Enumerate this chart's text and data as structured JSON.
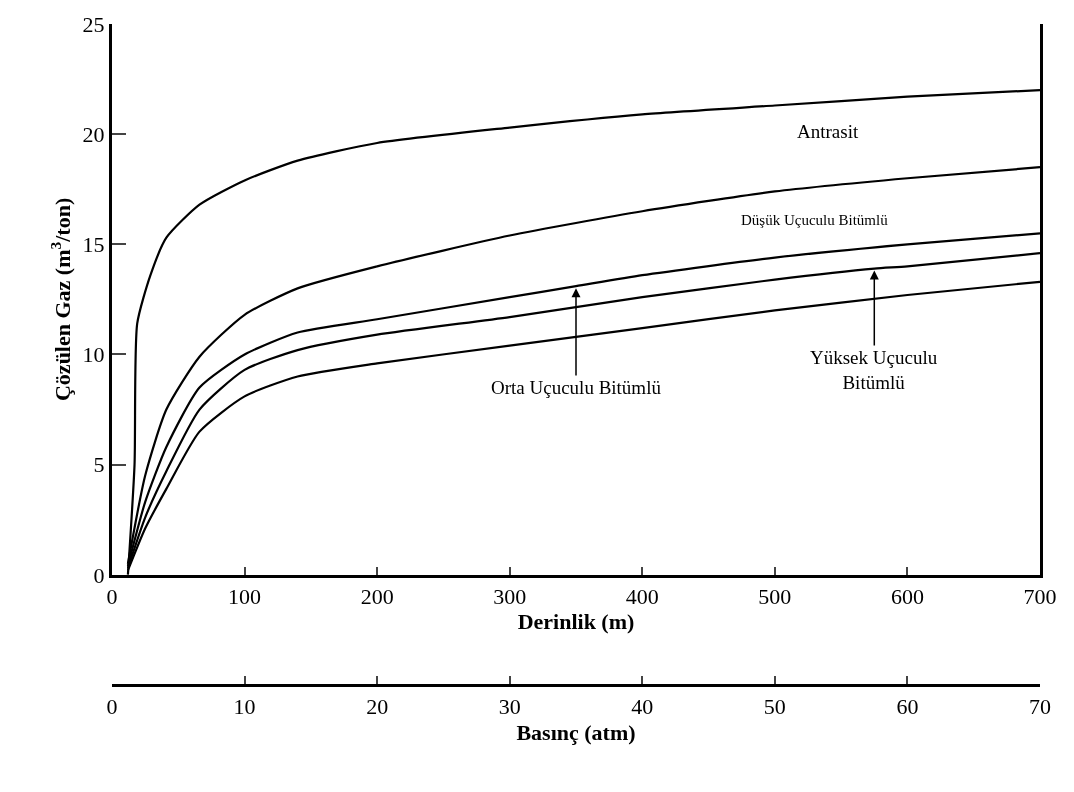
{
  "chart_data": {
    "type": "line",
    "xlabel": "Derinlik (m)",
    "ylabel": "Çözülen Gaz (m$^{3}$/ton)",
    "x2label": "Basınç (atm)",
    "xlim": [
      0,
      700
    ],
    "xticks": [
      0,
      100,
      200,
      300,
      400,
      500,
      600,
      700
    ],
    "x2lim": [
      0,
      70
    ],
    "x2ticks": [
      0,
      10,
      20,
      30,
      40,
      50,
      60,
      70
    ],
    "ylim": [
      0,
      25
    ],
    "yticks": [
      0,
      5,
      10,
      15,
      20,
      25
    ],
    "annotations": [
      {
        "text": "Orta Uçuculu Bitümlü",
        "x": 350,
        "y": 13.1
      },
      {
        "text": "Yüksek Uçuculu Bitümlü",
        "x": 575,
        "y": 13.9
      }
    ],
    "legend": false,
    "marker": "none",
    "line_style": "solid",
    "series": [
      {
        "name": "Antrasit",
        "color": "#000000",
        "x": [
          12,
          17,
          19,
          29,
          41,
          66,
          100,
          140,
          200,
          300,
          400,
          500,
          600,
          700
        ],
        "values": [
          0,
          5,
          11.4,
          13.6,
          15.3,
          16.8,
          17.9,
          18.8,
          19.6,
          20.3,
          20.9,
          21.3,
          21.7,
          22.0
        ]
      },
      {
        "name": "Düşük Uçuculu Bitümlü",
        "color": "#000000",
        "x": [
          12,
          25,
          41,
          66,
          100,
          140,
          200,
          300,
          400,
          500,
          600,
          700
        ],
        "values": [
          0.5,
          4.5,
          7.5,
          9.9,
          11.8,
          13.0,
          14.0,
          15.4,
          16.5,
          17.4,
          18.0,
          18.5
        ]
      },
      {
        "color": "#000000",
        "x": [
          12,
          25,
          41,
          66,
          100,
          140,
          200,
          300,
          350,
          400,
          500,
          600,
          700
        ],
        "values": [
          0.4,
          3.3,
          5.8,
          8.5,
          10.0,
          11.0,
          11.6,
          12.6,
          13.1,
          13.6,
          14.4,
          15.0,
          15.5
        ]
      },
      {
        "color": "#000000",
        "x": [
          12,
          25,
          41,
          66,
          100,
          140,
          200,
          300,
          400,
          500,
          575,
          600,
          700
        ],
        "values": [
          0.3,
          2.6,
          4.7,
          7.5,
          9.3,
          10.2,
          10.9,
          11.7,
          12.6,
          13.4,
          13.9,
          14.0,
          14.6
        ]
      },
      {
        "color": "#000000",
        "x": [
          12,
          25,
          41,
          66,
          100,
          140,
          200,
          300,
          400,
          500,
          600,
          700
        ],
        "values": [
          0.2,
          2.1,
          3.9,
          6.5,
          8.1,
          9.0,
          9.6,
          10.4,
          11.2,
          12.0,
          12.7,
          13.3
        ]
      }
    ]
  }
}
